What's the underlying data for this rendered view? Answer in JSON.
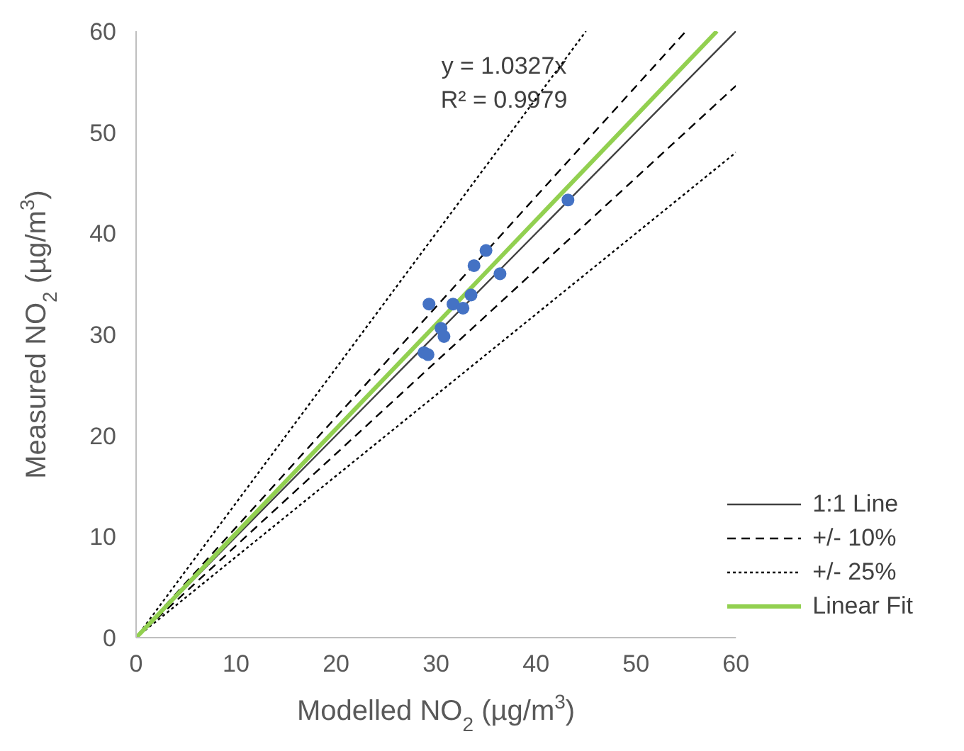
{
  "chart_data": {
    "type": "scatter",
    "xlabel": "Modelled NO$_{2}$ (µg/m$^{3}$)",
    "ylabel": "Measured NO$_{2}$ (µg/m$^{3}$)",
    "annotations": [
      "y = 1.0327x",
      "R² = 0.9979"
    ],
    "xlim": [
      0,
      60
    ],
    "ylim": [
      0,
      60
    ],
    "xticks": [
      0,
      10,
      20,
      30,
      40,
      50,
      60
    ],
    "yticks": [
      0,
      10,
      20,
      30,
      40,
      50,
      60
    ],
    "grid": false,
    "legend": "bottom right",
    "series": [
      {
        "color": "#4472c4",
        "marker": "circle",
        "x": [
          35.0,
          33.8,
          36.4,
          29.3,
          31.7,
          33.5,
          32.7,
          30.5,
          30.8,
          28.8,
          29.2,
          43.2
        ],
        "values": [
          38.3,
          36.8,
          36.0,
          33.0,
          33.0,
          33.9,
          32.6,
          30.6,
          29.8,
          28.2,
          28.0,
          43.3
        ]
      },
      {
        "type": "line",
        "name": "1:1 Line",
        "color": "#404040",
        "line_style": "solid",
        "marker": "none",
        "x": [
          0,
          60
        ],
        "values": [
          0,
          60
        ]
      },
      {
        "type": "line",
        "name": "+/- 10%",
        "color": "#000000",
        "line_style": "dashed",
        "marker": "none",
        "x": [
          0,
          55
        ],
        "values": [
          0,
          60
        ]
      },
      {
        "type": "line",
        "color": "#000000",
        "line_style": "dashed",
        "marker": "none",
        "x": [
          0,
          60
        ],
        "values": [
          0,
          54.6
        ]
      },
      {
        "type": "line",
        "name": "+/- 25%",
        "color": "#000000",
        "line_style": "dotted",
        "marker": "none",
        "x": [
          0,
          45
        ],
        "values": [
          0,
          60
        ]
      },
      {
        "type": "line",
        "color": "#000000",
        "line_style": "dotted",
        "marker": "none",
        "x": [
          0,
          60
        ],
        "values": [
          0,
          48
        ]
      },
      {
        "type": "line",
        "name": "Linear Fit",
        "color": "#92d050",
        "line_style": "solid",
        "marker": "none",
        "x": [
          0,
          58.1
        ],
        "values": [
          0,
          60
        ]
      }
    ]
  }
}
